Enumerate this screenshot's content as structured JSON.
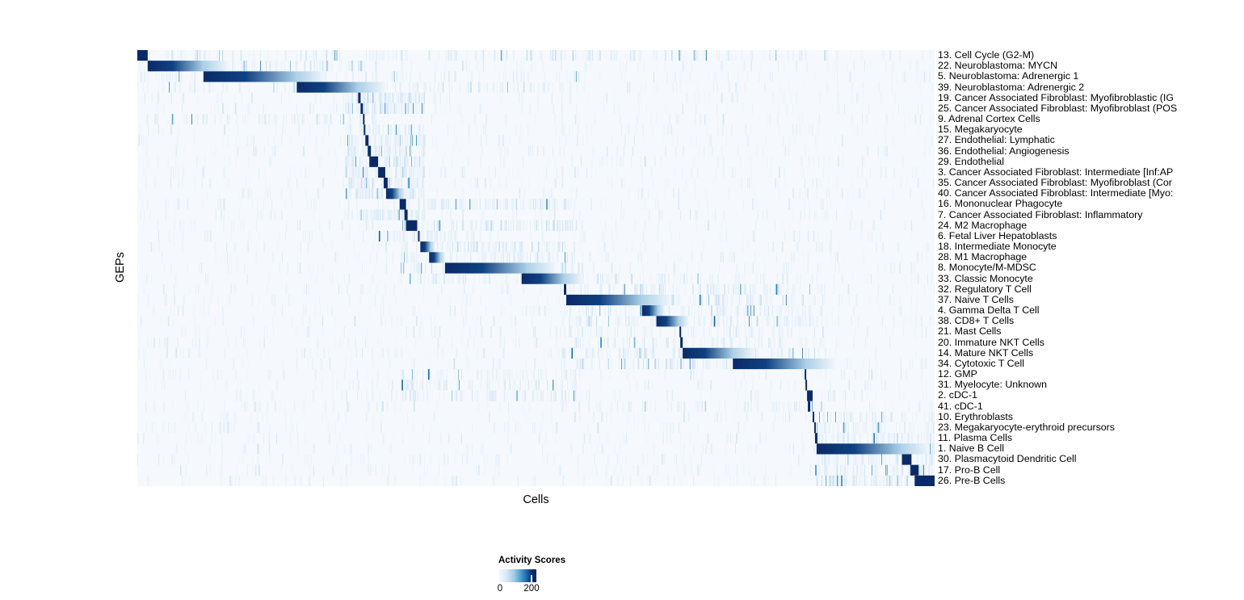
{
  "page": {
    "background": "#ffffff"
  },
  "figure": {
    "xlabel": "Cells",
    "ylabel": "GEPs"
  },
  "legend": {
    "title": "Activity Scores",
    "tick_labels": [
      "0",
      "200"
    ],
    "gradient_css": "linear-gradient(to right, #f7fbff 0%, #d7e6f5 22%, #9ec9e2 42%, #4b97c9 60%, #1663a9 76%, #0a2a67 88%, #0a2a67 100%)"
  },
  "chart_data": {
    "type": "heatmap",
    "title": "",
    "xlabel": "Cells",
    "ylabel": "GEPs",
    "x_axis_note": "columns are single cells ordered by their assigned GEP; no x tick labels shown",
    "value_range": [
      0,
      200
    ],
    "legend": {
      "title": "Activity Scores",
      "ticks": [
        0,
        200
      ],
      "position": "bottom"
    },
    "colormap": {
      "name": "Blues (white to dark navy)",
      "stops": [
        [
          "0.0",
          "#f5f9fd"
        ],
        [
          "0.2",
          "#d7e6f5"
        ],
        [
          "0.4",
          "#9ec9e2"
        ],
        [
          "0.6",
          "#4b97c9"
        ],
        [
          "0.8",
          "#1663a9"
        ],
        [
          "1.0",
          "#0a2a67"
        ]
      ]
    },
    "rows_note": "block = [start,end] fraction of cell axis with maximal activity (the GEP's assigned cells); fade = activity decays left-to-right inside block; band/level describe diffuse off-diagonal activity streaks",
    "rows": [
      {
        "label": "13. Cell Cycle (G2-M)",
        "block": [
          0.0,
          0.013
        ],
        "fade": false,
        "band": [
          0.0,
          0.88
        ],
        "level": 0.8
      },
      {
        "label": "22. Neuroblastoma: MYCN",
        "block": [
          0.013,
          0.083
        ],
        "fade": true,
        "band": [
          0.0,
          0.3
        ],
        "level": 0.5
      },
      {
        "label": "5. Neuroblastoma: Adrenergic 1",
        "block": [
          0.083,
          0.2
        ],
        "fade": true,
        "band": [
          0.0,
          0.56
        ],
        "level": 0.45
      },
      {
        "label": "39. Neuroblastoma: Adrenergic 2",
        "block": [
          0.2,
          0.277
        ],
        "fade": true,
        "band": [
          0.0,
          0.56
        ],
        "level": 0.45
      },
      {
        "label": "19. Cancer Associated Fibroblast: Myofibroblastic (IG",
        "block": [
          0.277,
          0.28
        ],
        "fade": false,
        "band": [
          0.26,
          0.36
        ],
        "level": 0.5
      },
      {
        "label": "25. Cancer Associated Fibroblast: Myofibroblast (POS",
        "block": [
          0.28,
          0.283
        ],
        "fade": false,
        "band": [
          0.26,
          0.36
        ],
        "level": 0.5
      },
      {
        "label": "9. Adrenal Cortex Cells",
        "block": [
          0.283,
          0.285
        ],
        "fade": false,
        "band": [
          0.0,
          0.3
        ],
        "level": 0.3
      },
      {
        "label": "15. Megakaryocyte",
        "block": [
          0.284,
          0.286
        ],
        "fade": false,
        "band": [
          0.26,
          0.36
        ],
        "level": 0.3
      },
      {
        "label": "27. Endothelial: Lymphatic",
        "block": [
          0.286,
          0.29
        ],
        "fade": false,
        "band": [
          0.26,
          0.36
        ],
        "level": 0.4
      },
      {
        "label": "36. Endothelial: Angiogenesis",
        "block": [
          0.289,
          0.293
        ],
        "fade": false,
        "band": [
          0.26,
          0.36
        ],
        "level": 0.4
      },
      {
        "label": "29. Endothelial",
        "block": [
          0.291,
          0.302
        ],
        "fade": false,
        "band": [
          0.26,
          0.36
        ],
        "level": 0.4
      },
      {
        "label": "3. Cancer Associated Fibroblast: Intermediate [Inf:AP",
        "block": [
          0.302,
          0.311
        ],
        "fade": false,
        "band": [
          0.26,
          0.36
        ],
        "level": 0.5
      },
      {
        "label": "35. Cancer Associated Fibroblast: Myofibroblast (Cor",
        "block": [
          0.309,
          0.314
        ],
        "fade": false,
        "band": [
          0.26,
          0.36
        ],
        "level": 0.5
      },
      {
        "label": "40. Cancer Associated Fibroblast: Intermediate [Myo:",
        "block": [
          0.312,
          0.329
        ],
        "fade": true,
        "band": [
          0.26,
          0.36
        ],
        "level": 0.5
      },
      {
        "label": "16. Mononuclear Phagocyte",
        "block": [
          0.329,
          0.337
        ],
        "fade": false,
        "band": [
          0.33,
          0.55
        ],
        "level": 0.5
      },
      {
        "label": "7. Cancer Associated Fibroblast: Inflammatory",
        "block": [
          0.335,
          0.339
        ],
        "fade": false,
        "band": [
          0.26,
          0.36
        ],
        "level": 0.4
      },
      {
        "label": "24. M2 Macrophage",
        "block": [
          0.337,
          0.351
        ],
        "fade": false,
        "band": [
          0.33,
          0.55
        ],
        "level": 0.5
      },
      {
        "label": "6. Fetal Liver Hepatoblasts",
        "block": [
          0.352,
          0.354
        ],
        "fade": false,
        "band": [
          0.3,
          0.4
        ],
        "level": 0.3
      },
      {
        "label": "18. Intermediate Monocyte",
        "block": [
          0.355,
          0.368
        ],
        "fade": true,
        "band": [
          0.33,
          0.55
        ],
        "level": 0.5
      },
      {
        "label": "28. M1 Macrophage",
        "block": [
          0.366,
          0.38
        ],
        "fade": true,
        "band": [
          0.33,
          0.55
        ],
        "level": 0.5
      },
      {
        "label": "8. Monocyte/M-MDSC",
        "block": [
          0.386,
          0.489
        ],
        "fade": true,
        "band": [
          0.33,
          0.56
        ],
        "level": 0.6
      },
      {
        "label": "33. Classic Monocyte",
        "block": [
          0.482,
          0.535
        ],
        "fade": true,
        "band": [
          0.33,
          0.83
        ],
        "level": 0.5
      },
      {
        "label": "32. Regulatory T Cell",
        "block": [
          0.535,
          0.538
        ],
        "fade": false,
        "band": [
          0.53,
          0.86
        ],
        "level": 0.5
      },
      {
        "label": "37. Naive T Cells",
        "block": [
          0.538,
          0.633
        ],
        "fade": true,
        "band": [
          0.53,
          0.86
        ],
        "level": 0.6
      },
      {
        "label": "4. Gamma Delta T Cell",
        "block": [
          0.633,
          0.653
        ],
        "fade": true,
        "band": [
          0.53,
          0.86
        ],
        "level": 0.5
      },
      {
        "label": "38. CD8+ T Cells",
        "block": [
          0.651,
          0.679
        ],
        "fade": true,
        "band": [
          0.53,
          0.86
        ],
        "level": 0.5
      },
      {
        "label": "21. Mast Cells",
        "block": [
          0.68,
          0.682
        ],
        "fade": false,
        "band": [
          0.53,
          0.86
        ],
        "level": 0.3
      },
      {
        "label": "20. Immature NKT Cells",
        "block": [
          0.681,
          0.684
        ],
        "fade": false,
        "band": [
          0.53,
          0.86
        ],
        "level": 0.4
      },
      {
        "label": "14. Mature NKT Cells",
        "block": [
          0.684,
          0.747
        ],
        "fade": true,
        "band": [
          0.53,
          0.86
        ],
        "level": 0.6
      },
      {
        "label": "34. Cytotoxic T Cell",
        "block": [
          0.747,
          0.839
        ],
        "fade": true,
        "band": [
          0.53,
          0.86
        ],
        "level": 0.6
      },
      {
        "label": "12. GMP",
        "block": [
          0.837,
          0.839
        ],
        "fade": false,
        "band": [
          0.33,
          0.55
        ],
        "level": 0.3
      },
      {
        "label": "31. Myelocyte: Unknown",
        "block": [
          0.838,
          0.84
        ],
        "fade": false,
        "band": [
          0.33,
          0.55
        ],
        "level": 0.4
      },
      {
        "label": "2. cDC-1",
        "block": [
          0.84,
          0.847
        ],
        "fade": false,
        "band": [
          0.33,
          0.55
        ],
        "level": 0.4
      },
      {
        "label": "41. cDC-1",
        "block": [
          0.841,
          0.844
        ],
        "fade": false,
        "band": [
          0.53,
          0.86
        ],
        "level": 0.3
      },
      {
        "label": "10. Erythroblasts",
        "block": [
          0.847,
          0.849
        ],
        "fade": false,
        "band": [
          0.85,
          1.0
        ],
        "level": 0.3
      },
      {
        "label": "23. Megakaryocyte-erythroid precursors",
        "block": [
          0.849,
          0.851
        ],
        "fade": false,
        "band": [
          0.85,
          1.0
        ],
        "level": 0.3
      },
      {
        "label": "11. Plasma Cells",
        "block": [
          0.85,
          0.853
        ],
        "fade": false,
        "band": [
          0.85,
          1.0
        ],
        "level": 0.4
      },
      {
        "label": "1. Naive B Cell",
        "block": [
          0.852,
          0.957
        ],
        "fade": true,
        "band": [
          0.85,
          1.0
        ],
        "level": 0.6
      },
      {
        "label": "30. Plasmacytoid Dendritic Cell",
        "block": [
          0.959,
          0.971
        ],
        "fade": false,
        "band": [
          0.85,
          1.0
        ],
        "level": 0.4
      },
      {
        "label": "17. Pro-B Cell",
        "block": [
          0.97,
          0.98
        ],
        "fade": false,
        "band": [
          0.85,
          1.0
        ],
        "level": 0.4
      },
      {
        "label": "26. Pre-B Cells",
        "block": [
          0.975,
          1.0
        ],
        "fade": false,
        "band": [
          0.85,
          1.0
        ],
        "level": 0.5
      }
    ]
  }
}
